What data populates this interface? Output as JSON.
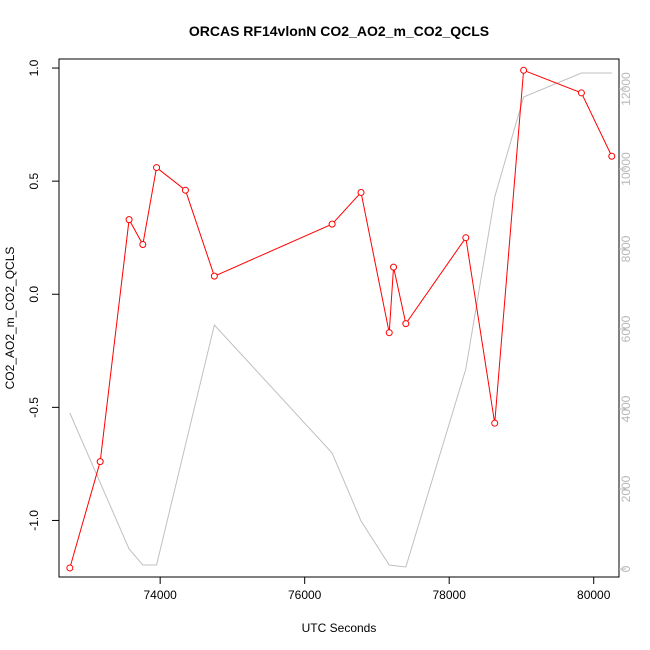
{
  "chart_data": {
    "type": "line",
    "title": "ORCAS RF14vlonN CO2_AO2_m_CO2_QCLS",
    "xlabel": "UTC Seconds",
    "ylabel": "CO2_AO2_m_CO2_QCLS",
    "xlim": [
      72600,
      80350
    ],
    "ylim": [
      -1.25,
      1.04
    ],
    "y2lim": [
      -200,
      12750
    ],
    "x_ticks": [
      74000,
      76000,
      78000,
      80000
    ],
    "y_ticks": [
      -1.0,
      -0.5,
      0.0,
      0.5,
      1.0
    ],
    "y2_ticks": [
      0,
      2000,
      4000,
      6000,
      8000,
      10000,
      12000
    ],
    "grid": false,
    "series": [
      {
        "color": "#ff0000",
        "marker": "circle",
        "x": [
          72750,
          73170,
          73570,
          73760,
          73950,
          74350,
          74750,
          76380,
          76780,
          77170,
          77230,
          77400,
          78230,
          78630,
          79030,
          79830,
          80250
        ],
        "y": [
          -1.21,
          -0.74,
          0.33,
          0.22,
          0.56,
          0.46,
          0.08,
          0.31,
          0.45,
          -0.17,
          0.12,
          -0.13,
          0.25,
          -0.57,
          0.99,
          0.89,
          0.61
        ]
      },
      {
        "color": "#c0c0c0",
        "axis": "right",
        "x": [
          72750,
          73570,
          73760,
          73950,
          74750,
          76380,
          76780,
          77170,
          77400,
          78230,
          78630,
          79030,
          79830,
          80250
        ],
        "y": [
          3900,
          500,
          100,
          100,
          6100,
          2900,
          1200,
          100,
          50,
          5000,
          9300,
          11800,
          12400,
          12400
        ]
      }
    ]
  }
}
